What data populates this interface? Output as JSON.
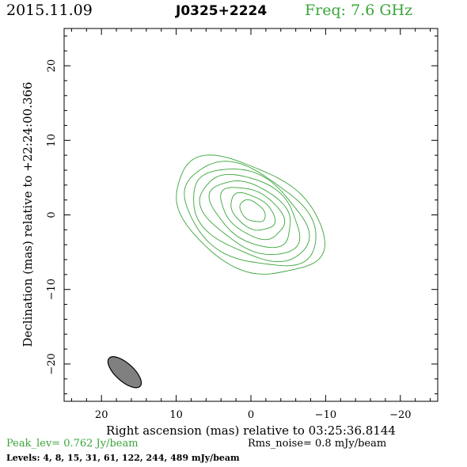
{
  "header": {
    "date": "2015.11.09",
    "source": "J0325+2224",
    "frequency": "Freq: 7.6 GHz"
  },
  "footer": {
    "peak": "Peak_lev=  0.762 Jy/beam",
    "rms": "Rms_noise=  0.8 mJy/beam",
    "levels": "Levels:  4,  8,  15,  31,  61,  122,  244,  489 mJy/beam"
  },
  "colors": {
    "contour": "#3aa53a",
    "beam_fill": "#808080",
    "axis": "#000000"
  },
  "chart_data": {
    "type": "contour",
    "xlabel": "Right ascension (mas) relative to 03:25:36.8144",
    "ylabel": "Declination (mas) relative to +22:24:00.366",
    "xlim": [
      25,
      -25
    ],
    "ylim": [
      -25,
      25
    ],
    "xticks": [
      20,
      10,
      0,
      -10,
      -20
    ],
    "xtick_labels": [
      "20",
      "10",
      "0",
      "−10",
      "−20"
    ],
    "yticks": [
      20,
      10,
      0,
      -10,
      -20
    ],
    "ytick_labels": [
      "20",
      "10",
      "0",
      "−10",
      "−20"
    ],
    "levels_mjy": [
      4,
      8,
      15,
      31,
      61,
      122,
      244,
      489
    ],
    "contours": [
      {
        "level": 4,
        "cx": 0.3,
        "cy": -0.2,
        "a": 10.8,
        "b": 6.6,
        "angle": -30
      },
      {
        "level": 8,
        "cx": 0.2,
        "cy": -0.1,
        "a": 9.6,
        "b": 5.8,
        "angle": -30
      },
      {
        "level": 15,
        "cx": 0.1,
        "cy": 0.0,
        "a": 8.5,
        "b": 5.1,
        "angle": -31
      },
      {
        "level": 31,
        "cx": 0.0,
        "cy": 0.1,
        "a": 7.3,
        "b": 4.4,
        "angle": -32
      },
      {
        "level": 61,
        "cx": -0.1,
        "cy": 0.2,
        "a": 6.0,
        "b": 3.6,
        "angle": -33
      },
      {
        "level": 122,
        "cx": -0.2,
        "cy": 0.3,
        "a": 4.7,
        "b": 2.8,
        "angle": -33
      },
      {
        "level": 244,
        "cx": -0.2,
        "cy": 0.4,
        "a": 3.3,
        "b": 2.0,
        "angle": -34
      },
      {
        "level": 489,
        "cx": -0.2,
        "cy": 0.5,
        "a": 1.9,
        "b": 1.2,
        "angle": -35
      }
    ],
    "beam": {
      "cx": 16.9,
      "cy": -21.1,
      "major": 5.6,
      "minor": 2.4,
      "angle": -48
    }
  }
}
